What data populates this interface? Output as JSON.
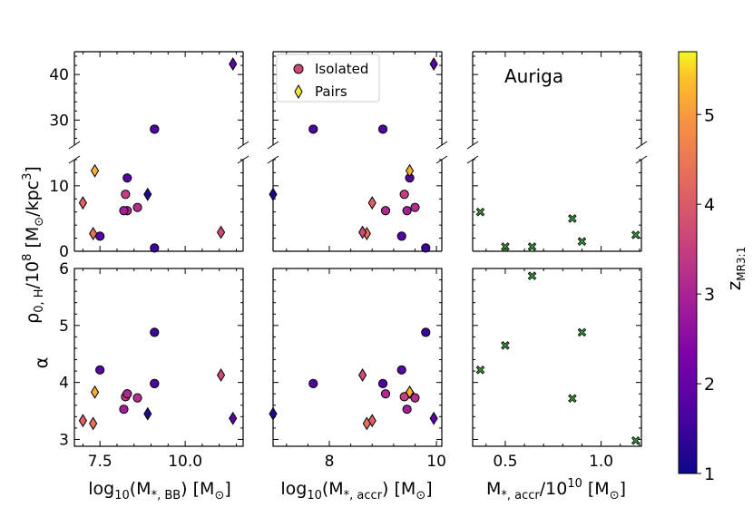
{
  "chart_data": {
    "type": "scatter",
    "title": "",
    "colorbar": {
      "label": "z_MR3:1",
      "label_main": "z",
      "label_sub": "MR3:1",
      "range": [
        1,
        5.7
      ],
      "ticks": [
        "1",
        "2",
        "3",
        "4",
        "5"
      ],
      "tick_values": [
        1,
        2,
        3,
        4,
        5
      ],
      "colormap": "plasma"
    },
    "legend": {
      "placement": "top-left of middle column",
      "entries": [
        {
          "label": "Isolated",
          "marker": "circle",
          "color": "#d4487a"
        },
        {
          "label": "Pairs",
          "marker": "diamond",
          "color": "#f6e832"
        }
      ]
    },
    "annotation": "Auriga",
    "y_labels": {
      "rho_main": "ρ",
      "rho_sub": "0, H",
      "rho_rest": "/10",
      "rho_exp": "8",
      "rho_unit_open": " [M",
      "rho_sun_sub": "⊙",
      "rho_unit_mid": "/kpc",
      "rho_unit_exp": "3",
      "rho_unit_close": "]",
      "alpha": "α"
    },
    "x_labels": {
      "col1_pre": "log",
      "col1_sub10": "10",
      "col1_mid": "(M",
      "col1_sub": "*, BB",
      "col1_post": ") [M",
      "col1_sun": "⊙",
      "col1_end": "]",
      "col2_pre": "log",
      "col2_sub10": "10",
      "col2_mid": "(M",
      "col2_sub": "*, accr",
      "col2_post": ") [M",
      "col2_sun": "⊙",
      "col2_end": "]",
      "col3_pre": "M",
      "col3_sub": "*, accr",
      "col3_mid": "/10",
      "col3_exp": "10",
      "col3_post": " [M",
      "col3_sun": "⊙",
      "col3_end": "]"
    },
    "axes": {
      "col1_x": {
        "range": [
          6.75,
          11.7
        ],
        "ticks": [
          7.5,
          10.0
        ],
        "tick_labels": [
          "7.5",
          "10.0"
        ]
      },
      "col2_x": {
        "range": [
          6.95,
          10.1
        ],
        "ticks": [
          8,
          10
        ],
        "tick_labels": [
          "8",
          "10"
        ]
      },
      "col3_x": {
        "range": [
          0.33,
          1.21
        ],
        "ticks": [
          0.5,
          1.0
        ],
        "tick_labels": [
          "0.5",
          "1.0"
        ]
      },
      "rho_top_y": {
        "range": [
          24.5,
          45.0
        ],
        "ticks": [
          30,
          40
        ],
        "tick_labels": [
          "30",
          "40"
        ]
      },
      "rho_bottom_y": {
        "range": [
          0,
          14.0
        ],
        "ticks": [
          0,
          10
        ],
        "tick_labels": [
          "0",
          "10"
        ]
      },
      "alpha_y": {
        "range": [
          2.88,
          6.0
        ],
        "ticks": [
          3,
          4,
          5,
          6
        ],
        "tick_labels": [
          "3",
          "4",
          "5",
          "6"
        ]
      }
    },
    "series": [
      {
        "name": "Isolated",
        "marker": "circle",
        "x_bb": [
          7.5,
          8.3,
          8.6,
          8.25,
          9.1,
          8.3,
          9.1,
          9.1,
          8.2
        ],
        "x_accr": [
          9.35,
          9.5,
          9.6,
          9.4,
          9.8,
          9.05,
          9.0,
          7.7,
          9.45
        ],
        "rho0": [
          2.3,
          11.2,
          6.7,
          8.7,
          0.5,
          6.2,
          28.0,
          28.0,
          6.2
        ],
        "alpha": [
          4.22,
          3.8,
          3.73,
          3.75,
          4.88,
          3.8,
          3.98,
          3.98,
          3.53
        ],
        "z_mr": [
          1.8,
          1.8,
          3.2,
          3.5,
          1.5,
          3.1,
          1.7,
          1.7,
          2.9
        ]
      },
      {
        "name": "Pairs",
        "marker": "diamond",
        "x_bb": [
          7.0,
          7.3,
          7.35,
          8.9,
          11.05,
          11.4
        ],
        "x_accr": [
          8.8,
          8.7,
          9.5,
          6.95,
          8.62,
          9.95
        ],
        "rho0": [
          7.4,
          2.7,
          12.3,
          8.7,
          2.9,
          42.3
        ],
        "alpha": [
          3.33,
          3.28,
          3.83,
          3.45,
          4.13,
          3.37
        ],
        "z_mr": [
          4.1,
          4.4,
          5.2,
          1.2,
          3.7,
          1.9
        ]
      },
      {
        "name": "Auriga",
        "marker": "x-filled",
        "color": "#3a9a3a",
        "x_accr_1e10": [
          0.37,
          0.5,
          0.64,
          0.85,
          0.9,
          1.18
        ],
        "rho0": [
          6.0,
          0.7,
          0.7,
          5.0,
          1.5,
          2.5
        ],
        "alpha": [
          4.22,
          4.65,
          5.87,
          3.72,
          4.88,
          2.98
        ]
      }
    ]
  }
}
